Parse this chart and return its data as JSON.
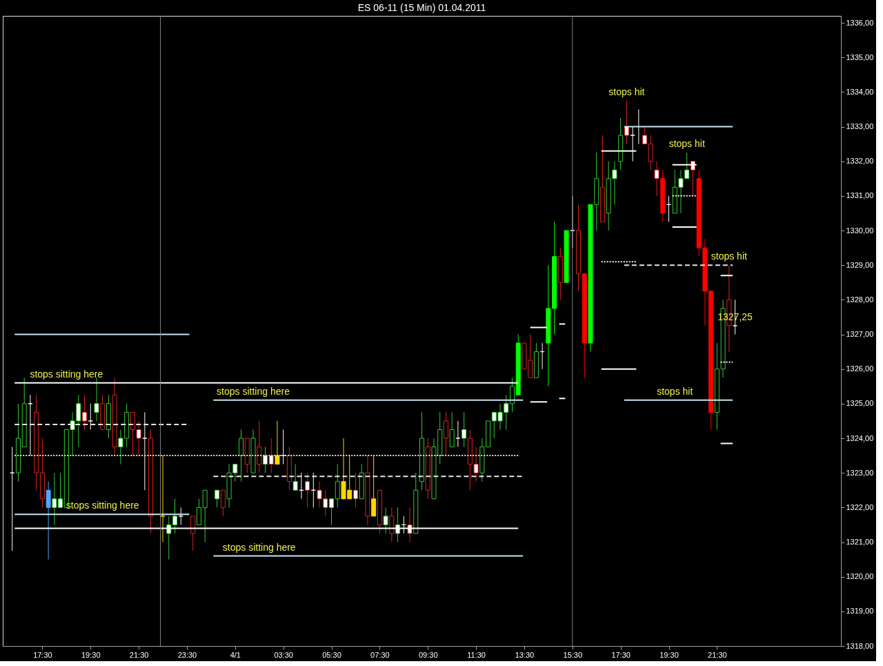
{
  "chart_data": {
    "type": "candlestick",
    "title": "ES 06-11 (15 Min)  01.04.2011",
    "x": [
      "2011-03-31T16:15",
      "2011-03-31T16:30",
      "2011-03-31T16:45",
      "2011-03-31T17:00",
      "2011-03-31T17:15",
      "2011-03-31T17:30",
      "2011-03-31T17:45",
      "2011-03-31T18:00",
      "2011-03-31T18:15",
      "2011-03-31T18:30",
      "2011-03-31T18:45",
      "2011-03-31T19:00",
      "2011-03-31T19:15",
      "2011-03-31T19:30",
      "2011-03-31T19:45",
      "2011-03-31T20:00",
      "2011-03-31T20:15",
      "2011-03-31T20:30",
      "2011-03-31T20:45",
      "2011-03-31T21:00",
      "2011-03-31T21:15",
      "2011-03-31T21:30",
      "2011-03-31T21:45",
      "2011-03-31T22:00",
      "2011-03-31T22:30",
      "2011-03-31T22:45",
      "2011-03-31T23:00",
      "2011-03-31T23:15",
      "2011-03-31T23:45",
      "2011-04-01T00:00",
      "2011-04-01T00:15",
      "2011-04-01T00:45",
      "2011-04-01T01:00",
      "2011-04-01T01:15",
      "2011-04-01T01:30",
      "2011-04-01T01:45",
      "2011-04-01T02:00",
      "2011-04-01T02:15",
      "2011-04-01T02:30",
      "2011-04-01T02:45",
      "2011-04-01T03:00",
      "2011-04-01T03:15",
      "2011-04-01T03:30",
      "2011-04-01T03:45",
      "2011-04-01T04:00",
      "2011-04-01T04:15",
      "2011-04-01T04:30",
      "2011-04-01T04:45",
      "2011-04-01T05:00",
      "2011-04-01T05:15",
      "2011-04-01T05:30",
      "2011-04-01T05:45",
      "2011-04-01T06:00",
      "2011-04-01T06:15",
      "2011-04-01T06:30",
      "2011-04-01T06:45",
      "2011-04-01T07:00",
      "2011-04-01T07:15",
      "2011-04-01T07:30",
      "2011-04-01T07:45",
      "2011-04-01T08:00",
      "2011-04-01T08:15",
      "2011-04-01T08:30",
      "2011-04-01T08:45",
      "2011-04-01T09:00",
      "2011-04-01T09:15",
      "2011-04-01T09:30",
      "2011-04-01T09:45",
      "2011-04-01T10:00",
      "2011-04-01T10:15",
      "2011-04-01T10:30",
      "2011-04-01T10:45",
      "2011-04-01T11:00",
      "2011-04-01T11:15",
      "2011-04-01T11:30",
      "2011-04-01T11:45",
      "2011-04-01T12:00",
      "2011-04-01T12:15",
      "2011-04-01T12:30",
      "2011-04-01T12:45",
      "2011-04-01T13:00",
      "2011-04-01T13:15",
      "2011-04-01T13:30",
      "2011-04-01T13:45",
      "2011-04-01T14:00",
      "2011-04-01T14:15",
      "2011-04-01T14:30",
      "2011-04-01T14:45",
      "2011-04-01T15:00",
      "2011-04-01T15:15",
      "2011-04-01T15:30",
      "2011-04-01T15:45",
      "2011-04-01T16:00",
      "2011-04-01T16:15",
      "2011-04-01T16:30",
      "2011-04-01T16:45",
      "2011-04-01T17:00",
      "2011-04-01T17:15",
      "2011-04-01T17:30",
      "2011-04-01T17:45",
      "2011-04-01T18:00",
      "2011-04-01T18:15",
      "2011-04-01T18:30",
      "2011-04-01T18:45",
      "2011-04-01T19:00",
      "2011-04-01T19:15",
      "2011-04-01T19:30",
      "2011-04-01T19:45",
      "2011-04-01T20:00",
      "2011-04-01T20:15",
      "2011-04-01T20:30",
      "2011-04-01T20:45",
      "2011-04-01T21:00",
      "2011-04-01T21:15",
      "2011-04-01T21:30",
      "2011-04-01T21:45",
      "2011-04-01T22:00",
      "2011-04-01T22:15"
    ],
    "ohlc": [
      [
        1323,
        1323.75,
        1320.75,
        1323
      ],
      [
        1323,
        1325,
        1322.75,
        1324
      ],
      [
        1323.75,
        1325.75,
        1323.75,
        1325
      ],
      [
        1325,
        1325.25,
        1323.5,
        1325
      ],
      [
        1324.75,
        1325.25,
        1322.5,
        1323
      ],
      [
        1323,
        1324,
        1322,
        1322.25
      ],
      [
        1322.5,
        1322.75,
        1320.5,
        1322
      ],
      [
        1322,
        1323,
        1321.5,
        1322.25
      ],
      [
        1322,
        1323,
        1322,
        1322.25
      ],
      [
        1322,
        1324.25,
        1322,
        1324.25
      ],
      [
        1324.25,
        1324.75,
        1323.5,
        1324.5
      ],
      [
        1324.5,
        1325.25,
        1323.75,
        1325
      ],
      [
        1324.75,
        1325.25,
        1324.25,
        1324.5
      ],
      [
        1324.5,
        1325,
        1324.25,
        1324.5
      ],
      [
        1324.75,
        1325.75,
        1324.5,
        1325
      ],
      [
        1325,
        1325.25,
        1324.25,
        1324.25
      ],
      [
        1324.25,
        1325.25,
        1324,
        1325
      ],
      [
        1325.25,
        1325.75,
        1323.5,
        1323.75
      ],
      [
        1323.75,
        1324.25,
        1323.25,
        1324
      ],
      [
        1324,
        1325,
        1323.75,
        1324.75
      ],
      [
        1324.75,
        1324.75,
        1323.5,
        1324.25
      ],
      [
        1324.25,
        1324.5,
        1323.5,
        1324
      ],
      [
        1324,
        1324.75,
        1322.5,
        1324
      ],
      [
        1324,
        1324.25,
        1321.25,
        1321.75
      ],
      [
        1321.75,
        1323.5,
        1321,
        1321.75
      ],
      [
        1321.25,
        1321.75,
        1320.5,
        1321.5
      ],
      [
        1321.5,
        1322.25,
        1321.25,
        1321.75
      ],
      [
        1321.75,
        1322,
        1321.5,
        1321.75
      ],
      [
        1321.75,
        1321.75,
        1320.75,
        1321.25
      ],
      [
        1321.5,
        1322.25,
        1321.5,
        1322
      ],
      [
        1322,
        1322.5,
        1321,
        1322.5
      ],
      [
        1322.25,
        1322.5,
        1322,
        1322.5
      ],
      [
        1322.5,
        1322.5,
        1321.75,
        1322
      ],
      [
        1322.25,
        1323.25,
        1322,
        1323
      ],
      [
        1323,
        1323.25,
        1322.75,
        1323.25
      ],
      [
        1323.5,
        1324.25,
        1322.75,
        1324
      ],
      [
        1324,
        1324,
        1323,
        1323.25
      ],
      [
        1323,
        1324.25,
        1323,
        1324
      ],
      [
        1323.75,
        1324.5,
        1323,
        1323.25
      ],
      [
        1323.25,
        1323.75,
        1323,
        1323.5
      ],
      [
        1323.5,
        1324,
        1323,
        1323.25
      ],
      [
        1323.5,
        1324.5,
        1323.25,
        1323.25
      ],
      [
        1323.5,
        1324.25,
        1323.25,
        1323.5
      ],
      [
        1323.5,
        1323.75,
        1322.5,
        1322.75
      ],
      [
        1322.5,
        1323.25,
        1322.5,
        1322.75
      ],
      [
        1322.5,
        1323,
        1322.25,
        1322.5
      ],
      [
        1322.75,
        1323,
        1322,
        1322.5
      ],
      [
        1322.5,
        1323,
        1322,
        1322.5
      ],
      [
        1322.5,
        1322.75,
        1322,
        1322.25
      ],
      [
        1322.25,
        1322.5,
        1321.75,
        1322
      ],
      [
        1322,
        1322.25,
        1321.5,
        1322.25
      ],
      [
        1322.25,
        1323.25,
        1322,
        1322.75
      ],
      [
        1322.75,
        1324,
        1322.25,
        1322.25
      ],
      [
        1322.5,
        1323.5,
        1322.25,
        1322.25
      ],
      [
        1322.5,
        1323,
        1322,
        1322.25
      ],
      [
        1322.25,
        1323.25,
        1322.25,
        1323
      ],
      [
        1323,
        1323.5,
        1321.5,
        1321.75
      ],
      [
        1322.25,
        1323.5,
        1321.75,
        1321.75
      ],
      [
        1322.5,
        1322.5,
        1321.25,
        1321.5
      ],
      [
        1321.5,
        1322,
        1321.25,
        1321.75
      ],
      [
        1321.75,
        1322,
        1321,
        1321.25
      ],
      [
        1321.25,
        1322,
        1321,
        1321.5
      ],
      [
        1321.5,
        1321.75,
        1321.25,
        1321.5
      ],
      [
        1321.5,
        1322,
        1321,
        1321.25
      ],
      [
        1321.25,
        1323,
        1321.25,
        1322.5
      ],
      [
        1322.75,
        1324.75,
        1322.5,
        1324
      ],
      [
        1323.75,
        1324,
        1322.25,
        1322.5
      ],
      [
        1322.25,
        1324,
        1322.25,
        1323.75
      ],
      [
        1323.5,
        1324.75,
        1323.25,
        1324.25
      ],
      [
        1324.5,
        1324.75,
        1323.5,
        1324
      ],
      [
        1323.75,
        1324.75,
        1323.75,
        1324.25
      ],
      [
        1324,
        1324.5,
        1323.75,
        1324
      ],
      [
        1324,
        1324.75,
        1323.75,
        1324.25
      ],
      [
        1324,
        1324.25,
        1322.5,
        1323.25
      ],
      [
        1323.25,
        1323.75,
        1322.75,
        1323
      ],
      [
        1323,
        1324,
        1322.75,
        1323.75
      ],
      [
        1323.75,
        1324.5,
        1323.75,
        1324.5
      ],
      [
        1324.5,
        1324.75,
        1324,
        1324.75
      ],
      [
        1324.5,
        1325,
        1324.25,
        1324.75
      ],
      [
        1324.75,
        1325.25,
        1324.25,
        1325
      ],
      [
        1325,
        1325.75,
        1324.75,
        1325.5
      ],
      [
        1325.25,
        1327,
        1325.25,
        1326.75
      ],
      [
        1326.75,
        1326.75,
        1326,
        1326
      ],
      [
        1326.25,
        1327,
        1325.75,
        1325.75
      ],
      [
        1325.75,
        1326.75,
        1325.75,
        1326.5
      ],
      [
        1326.5,
        1326.75,
        1326,
        1326.5
      ],
      [
        1326.75,
        1329,
        1325.5,
        1327.75
      ],
      [
        1327.75,
        1330.25,
        1327,
        1329.25
      ],
      [
        1329.25,
        1329.5,
        1328,
        1328.5
      ],
      [
        1328.5,
        1330,
        1328.5,
        1330
      ],
      [
        1330,
        1331,
        1329.5,
        1330
      ],
      [
        1330,
        1330.75,
        1328.25,
        1328.75
      ],
      [
        1328.75,
        1328.75,
        1325.75,
        1326.75
      ],
      [
        1326.75,
        1330.75,
        1326.5,
        1330.75
      ],
      [
        1330.75,
        1332.25,
        1330,
        1331.5
      ],
      [
        1331.25,
        1332.75,
        1330.25,
        1330.25
      ],
      [
        1330.5,
        1332,
        1330,
        1331.5
      ],
      [
        1331.5,
        1332,
        1330.75,
        1331.75
      ],
      [
        1332,
        1333.25,
        1331.75,
        1332.75
      ],
      [
        1333,
        1333.75,
        1332.5,
        1332.75
      ],
      [
        1332.75,
        1333,
        1332,
        1332.75
      ],
      [
        1333,
        1333.5,
        1332.5,
        1333
      ],
      [
        1332.75,
        1333,
        1332.5,
        1332.5
      ],
      [
        1332.5,
        1332.75,
        1331.75,
        1332
      ],
      [
        1331.75,
        1332,
        1331,
        1331.5
      ],
      [
        1331.5,
        1331.75,
        1330.25,
        1330.5
      ],
      [
        1330.75,
        1331,
        1330.25,
        1330.75
      ],
      [
        1330.5,
        1331.75,
        1330.5,
        1331.25
      ],
      [
        1331.25,
        1331.75,
        1330.5,
        1331.5
      ],
      [
        1331.5,
        1332.25,
        1331.5,
        1331.75
      ],
      [
        1332,
        1332,
        1331,
        1331.75
      ],
      [
        1331.5,
        1331.75,
        1329.25,
        1329.5
      ],
      [
        1329.5,
        1329.75,
        1327.25,
        1328.25
      ],
      [
        1328.25,
        1328.25,
        1324.25,
        1324.75
      ],
      [
        1324.75,
        1326.75,
        1324.25,
        1326
      ],
      [
        1326,
        1328,
        1325.75,
        1327.75
      ],
      [
        1328,
        1329,
        1326.5,
        1327.25
      ],
      [
        1327.25,
        1328,
        1327,
        1327.25
      ]
    ],
    "colors": [
      "#ffffff",
      "#000000",
      "#000000",
      "#ffffff",
      "#000000",
      "#000000",
      "#4da6ff",
      "#ffffff",
      "#ffffff",
      "#000000",
      "#ffffff",
      "#ffffff",
      "#ffffff",
      "#ffffff",
      "#ffffff",
      "#000000",
      "#000000",
      "#000000",
      "#ffffff",
      "#000000",
      "#000000",
      "#ffffff",
      "#ffffff",
      "#000000",
      "#ffd700",
      "#ffffff",
      "#ffffff",
      "#ffffff",
      "#000000",
      "#000000",
      "#000000",
      "#ffffff",
      "#000000",
      "#000000",
      "#ffffff",
      "#000000",
      "#000000",
      "#000000",
      "#000000",
      "#ffffff",
      "#ffffff",
      "#ffd700",
      "#ffffff",
      "#000000",
      "#ffffff",
      "#ffffff",
      "#ffffff",
      "#ffffff",
      "#ffffff",
      "#ffffff",
      "#ffffff",
      "#000000",
      "#ffd700",
      "#ffd700",
      "#ffffff",
      "#000000",
      "#000000",
      "#ffd700",
      "#000000",
      "#ffffff",
      "#000000",
      "#ffffff",
      "#ffffff",
      "#ffffff",
      "#000000",
      "#000000",
      "#000000",
      "#000000",
      "#000000",
      "#000000",
      "#000000",
      "#ffffff",
      "#ffffff",
      "#000000",
      "#ffffff",
      "#000000",
      "#000000",
      "#ffffff",
      "#ffffff",
      "#ffffff",
      "#000000",
      "#00ff00",
      "#000000",
      "#000000",
      "#000000",
      "#ffffff",
      "#00ff00",
      "#00ff00",
      "#000000",
      "#00ff00",
      "#ffffff",
      "#000000",
      "#ff0000",
      "#00ff00",
      "#000000",
      "#000000",
      "#000000",
      "#ffffff",
      "#000000",
      "#ffffff",
      "#ffffff",
      "#ffffff",
      "#ffffff",
      "#000000",
      "#ffffff",
      "#ff0000",
      "#ffffff",
      "#000000",
      "#ffffff",
      "#ffffff",
      "#ffffff",
      "#ff0000",
      "#ff0000",
      "#ff0000",
      "#000000",
      "#000000",
      "#000000",
      "#ffffff"
    ],
    "series": [
      {
        "type": "line",
        "color": "#c8e6f0",
        "line_style": "solid",
        "x": [
          "2011-03-31T16:21",
          "2011-03-31T23:36"
        ],
        "values": [
          1327.0,
          1327.0
        ]
      },
      {
        "type": "line",
        "color": "#c8e6f0",
        "line_style": "solid",
        "x": [
          "2011-03-31T16:21",
          "2011-03-31T23:36"
        ],
        "values": [
          1321.8,
          1321.8
        ]
      },
      {
        "type": "line",
        "color": "#c8e6f0",
        "line_style": "solid",
        "x": [
          "2011-04-01T00:36",
          "2011-04-01T13:27"
        ],
        "values": [
          1325.1,
          1325.1
        ]
      },
      {
        "type": "line",
        "color": "#c8e6f0",
        "line_style": "solid",
        "x": [
          "2011-04-01T00:36",
          "2011-04-01T13:27"
        ],
        "values": [
          1320.6,
          1320.6
        ]
      },
      {
        "type": "line",
        "color": "#c8e6f0",
        "line_style": "solid",
        "x": [
          "2011-04-01T17:39",
          "2011-04-01T22:09"
        ],
        "values": [
          1333.0,
          1333.0
        ]
      },
      {
        "type": "line",
        "color": "#c8e6f0",
        "line_style": "solid",
        "x": [
          "2011-04-01T17:39",
          "2011-04-01T22:09"
        ],
        "values": [
          1325.1,
          1325.1
        ]
      },
      {
        "type": "line",
        "color": "#ffffff",
        "line_style": "solid",
        "x": [
          "2011-03-31T16:21",
          "2011-04-01T13:15"
        ],
        "values": [
          1325.6,
          1325.6
        ]
      },
      {
        "type": "line",
        "color": "#ffffff",
        "line_style": "solid",
        "x": [
          "2011-03-31T16:21",
          "2011-04-01T13:15"
        ],
        "values": [
          1321.4,
          1321.4
        ]
      },
      {
        "type": "line",
        "color": "#e8e8e8",
        "line_style": "dashed",
        "x": [
          "2011-03-31T16:21",
          "2011-03-31T23:36"
        ],
        "values": [
          1324.4,
          1324.4
        ]
      },
      {
        "type": "line",
        "color": "#e8e8e8",
        "line_style": "dashed",
        "x": [
          "2011-04-01T00:36",
          "2011-04-01T13:27"
        ],
        "values": [
          1322.9,
          1322.9
        ]
      },
      {
        "type": "line",
        "color": "#e8e8e8",
        "line_style": "dashed",
        "x": [
          "2011-04-01T17:39",
          "2011-04-01T22:09"
        ],
        "values": [
          1329.0,
          1329.0
        ]
      },
      {
        "type": "line",
        "color": "#e8e8b0",
        "line_style": "dotted",
        "x": [
          "2011-03-31T16:21",
          "2011-04-01T13:15"
        ],
        "values": [
          1323.5,
          1323.5
        ]
      },
      {
        "type": "line",
        "color": "#ffffff",
        "line_style": "solid",
        "x": [
          "2011-04-01T13:45",
          "2011-04-01T14:27"
        ],
        "values": [
          1327.2,
          1327.2
        ]
      },
      {
        "type": "line",
        "color": "#ffffff",
        "line_style": "solid",
        "x": [
          "2011-04-01T13:45",
          "2011-04-01T14:27"
        ],
        "values": [
          1325.05,
          1325.05
        ]
      },
      {
        "type": "line",
        "color": "#ffffff",
        "line_style": "solid",
        "x": [
          "2011-04-01T14:57",
          "2011-04-01T15:12"
        ],
        "values": [
          1327.3,
          1327.3
        ]
      },
      {
        "type": "line",
        "color": "#ffffff",
        "line_style": "solid",
        "x": [
          "2011-04-01T14:57",
          "2011-04-01T15:12"
        ],
        "values": [
          1325.15,
          1325.15
        ]
      },
      {
        "type": "line",
        "color": "#ffffff",
        "line_style": "solid",
        "x": [
          "2011-04-01T16:42",
          "2011-04-01T18:09"
        ],
        "values": [
          1332.3,
          1332.3
        ]
      },
      {
        "type": "line",
        "color": "#ffffff",
        "line_style": "dotted",
        "x": [
          "2011-04-01T16:42",
          "2011-04-01T18:09"
        ],
        "values": [
          1329.1,
          1329.1
        ]
      },
      {
        "type": "line",
        "color": "#ffffff",
        "line_style": "solid",
        "x": [
          "2011-04-01T16:42",
          "2011-04-01T18:09"
        ],
        "values": [
          1326.0,
          1326.0
        ]
      },
      {
        "type": "line",
        "color": "#ffffff",
        "line_style": "solid",
        "x": [
          "2011-04-01T19:39",
          "2011-04-01T20:39"
        ],
        "values": [
          1331.9,
          1331.9
        ]
      },
      {
        "type": "line",
        "color": "#ffffff",
        "line_style": "dotted",
        "x": [
          "2011-04-01T19:39",
          "2011-04-01T20:39"
        ],
        "values": [
          1331.0,
          1331.0
        ]
      },
      {
        "type": "line",
        "color": "#ffffff",
        "line_style": "solid",
        "x": [
          "2011-04-01T19:39",
          "2011-04-01T20:39"
        ],
        "values": [
          1330.1,
          1330.1
        ]
      },
      {
        "type": "line",
        "color": "#ffffff",
        "line_style": "solid",
        "x": [
          "2011-04-01T21:39",
          "2011-04-01T22:09"
        ],
        "values": [
          1328.7,
          1328.7
        ]
      },
      {
        "type": "line",
        "color": "#ffffff",
        "line_style": "dotted",
        "x": [
          "2011-04-01T21:39",
          "2011-04-01T22:09"
        ],
        "values": [
          1326.2,
          1326.2
        ]
      },
      {
        "type": "line",
        "color": "#ffffff",
        "line_style": "solid",
        "x": [
          "2011-04-01T21:39",
          "2011-04-01T22:09"
        ],
        "values": [
          1323.85,
          1323.85
        ]
      }
    ],
    "ref_lines": [
      {
        "axis": "x",
        "value": "2011-03-31T22:24",
        "color": "#808080"
      },
      {
        "axis": "x",
        "value": "2011-04-01T15:30",
        "color": "#808080"
      }
    ],
    "annotations": [
      {
        "text": "stops sitting here",
        "x": "2011-03-31T18:30",
        "y": 1325.6
      },
      {
        "text": "stops sitting here",
        "x": "2011-04-01T02:15",
        "y": 1325.1
      },
      {
        "text": "stops sitting here",
        "x": "2011-03-31T20:00",
        "y": 1321.8
      },
      {
        "text": "stops sitting here",
        "x": "2011-04-01T02:30",
        "y": 1320.6
      },
      {
        "text": "stops hit",
        "x": "2011-04-01T17:45",
        "y": 1333.75
      },
      {
        "text": "stops hit",
        "x": "2011-04-01T20:15",
        "y": 1332.25
      },
      {
        "text": "stops hit",
        "x": "2011-04-01T22:00",
        "y": 1329.0
      },
      {
        "text": "stops hit",
        "x": "2011-04-01T19:45",
        "y": 1325.1
      },
      {
        "text": "1327,25",
        "x": "2011-04-01T22:15",
        "y": 1327.25
      }
    ],
    "xlim": [
      "2011-03-31T16:00",
      "2011-04-02T02:30"
    ],
    "xticks": [
      {
        "value": "2011-03-31T17:30",
        "label": "17:30"
      },
      {
        "value": "2011-03-31T19:30",
        "label": "19:30"
      },
      {
        "value": "2011-03-31T21:30",
        "label": "21:30"
      },
      {
        "value": "2011-03-31T23:30",
        "label": "23:30"
      },
      {
        "value": "2011-04-01T01:30",
        "label": "4/1"
      },
      {
        "value": "2011-04-01T03:30",
        "label": "03:30"
      },
      {
        "value": "2011-04-01T05:30",
        "label": "05:30"
      },
      {
        "value": "2011-04-01T07:30",
        "label": "07:30"
      },
      {
        "value": "2011-04-01T09:30",
        "label": "09:30"
      },
      {
        "value": "2011-04-01T11:30",
        "label": "11:30"
      },
      {
        "value": "2011-04-01T13:30",
        "label": "13:30"
      },
      {
        "value": "2011-04-01T15:30",
        "label": "15:30"
      },
      {
        "value": "2011-04-01T17:30",
        "label": "17:30"
      },
      {
        "value": "2011-04-01T19:30",
        "label": "19:30"
      },
      {
        "value": "2011-04-01T21:30",
        "label": "21:30"
      }
    ],
    "ylim": [
      1318,
      1336.2
    ],
    "yticks": [
      {
        "value": 1318,
        "label": "1318,00"
      },
      {
        "value": 1319,
        "label": "1319,00"
      },
      {
        "value": 1320,
        "label": "1320,00"
      },
      {
        "value": 1321,
        "label": "1321,00"
      },
      {
        "value": 1322,
        "label": "1322,00"
      },
      {
        "value": 1323,
        "label": "1323,00"
      },
      {
        "value": 1324,
        "label": "1324,00"
      },
      {
        "value": 1325,
        "label": "1325,00"
      },
      {
        "value": 1326,
        "label": "1326,00"
      },
      {
        "value": 1327,
        "label": "1327,00"
      },
      {
        "value": 1328,
        "label": "1328,00"
      },
      {
        "value": 1329,
        "label": "1329,00"
      },
      {
        "value": 1330,
        "label": "1330,00"
      },
      {
        "value": 1331,
        "label": "1331,00"
      },
      {
        "value": 1332,
        "label": "1332,00"
      },
      {
        "value": 1333,
        "label": "1333,00"
      },
      {
        "value": 1334,
        "label": "1334,00"
      },
      {
        "value": 1335,
        "label": "1335,00"
      },
      {
        "value": 1336,
        "label": "1336,00"
      }
    ],
    "grid": false
  }
}
